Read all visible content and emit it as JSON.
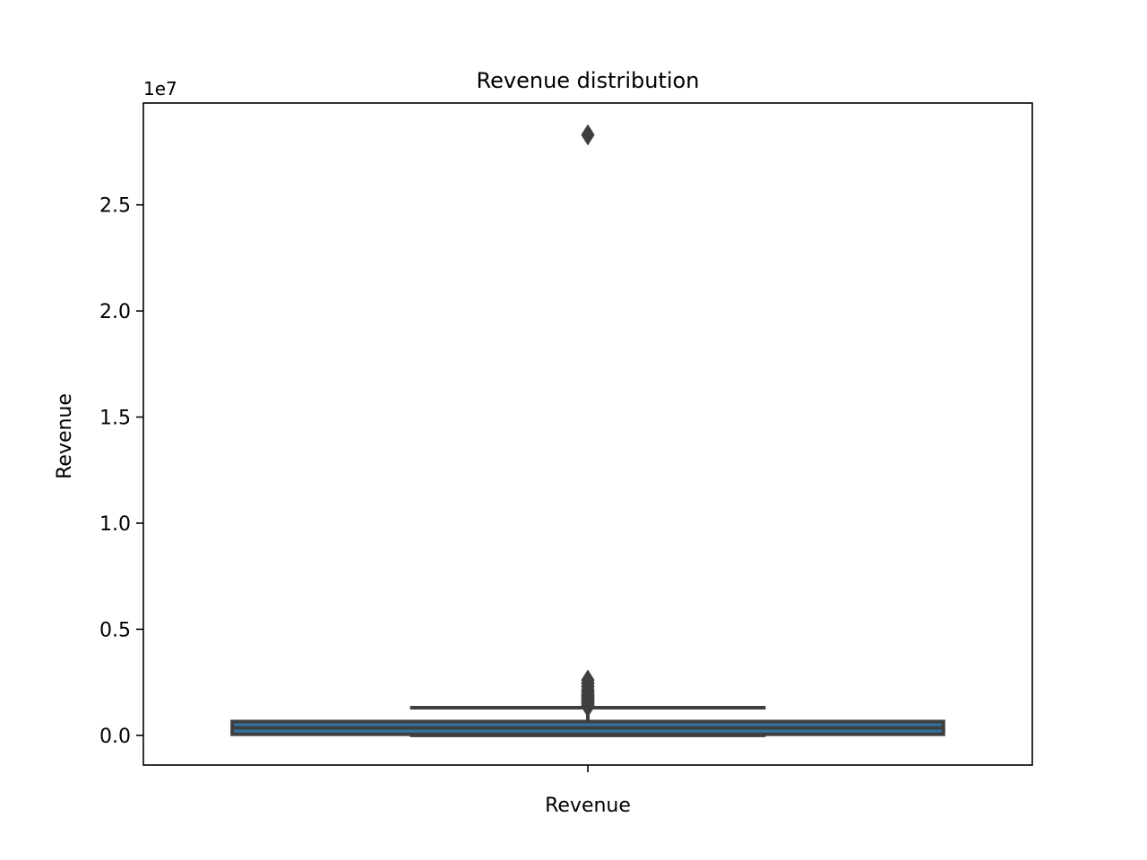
{
  "chart_data": {
    "type": "box",
    "title": "Revenue distribution",
    "xlabel": "",
    "ylabel": "Revenue",
    "offset_text": "1e7",
    "categories": [
      "Revenue"
    ],
    "ylim": [
      -1400000,
      29800000
    ],
    "yticks": [
      0,
      5000000,
      10000000,
      15000000,
      20000000,
      25000000
    ],
    "ytick_labels": [
      "0.0",
      "0.5",
      "1.0",
      "1.5",
      "2.0",
      "2.5"
    ],
    "grid": false,
    "legend": "none",
    "box": {
      "whisker_low": 0,
      "q1": 50000,
      "median": 350000,
      "q3": 650000,
      "whisker_high": 1300000,
      "outliers": [
        1350000,
        1420000,
        1500000,
        1580000,
        1650000,
        1720000,
        1800000,
        1870000,
        1950000,
        2050000,
        2150000,
        2300000,
        2450000,
        2600000,
        28300000
      ]
    },
    "colors": {
      "box_fill": "#3274a1",
      "box_edge": "#3f3f3f"
    }
  }
}
